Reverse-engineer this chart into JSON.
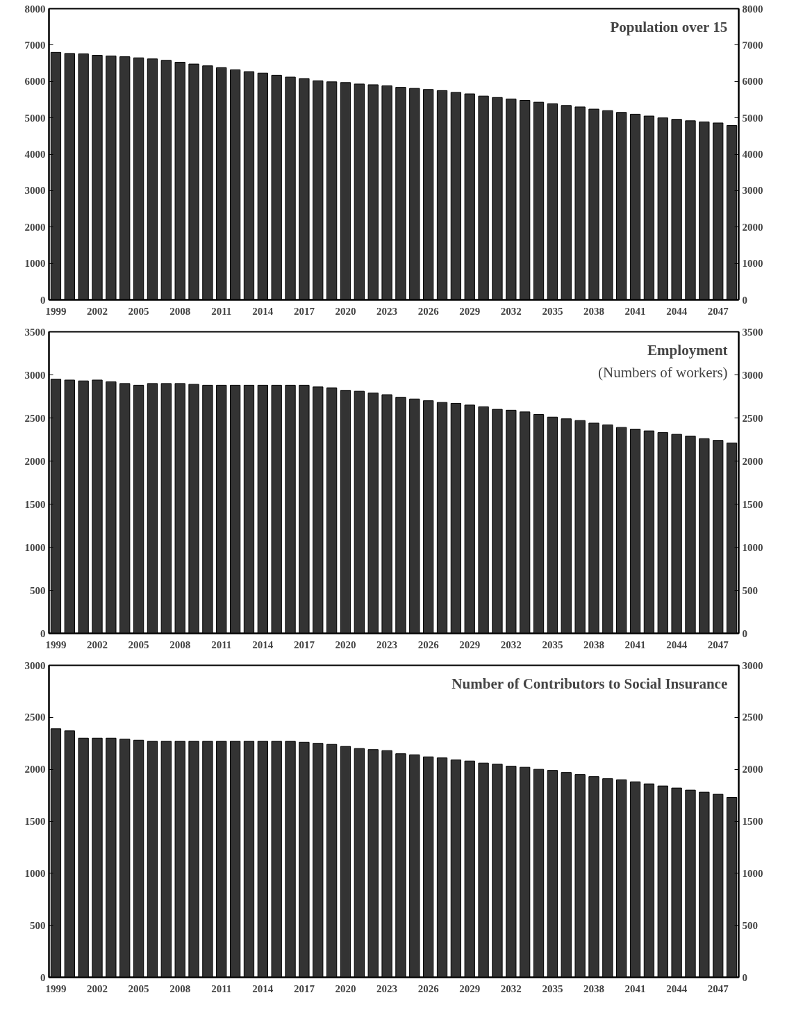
{
  "chart_data": [
    {
      "type": "bar",
      "title": "Population over 15",
      "categories": [
        "1999",
        null,
        null,
        "2002",
        null,
        null,
        "2005",
        null,
        null,
        "2008",
        null,
        null,
        "2011",
        null,
        null,
        "2014",
        null,
        null,
        "2017",
        null,
        null,
        "2020",
        null,
        null,
        "2023",
        null,
        null,
        "2026",
        null,
        null,
        "2029",
        null,
        null,
        "2032",
        null,
        null,
        "2035",
        null,
        null,
        "2038",
        null,
        null,
        "2041",
        null,
        null,
        "2044",
        null,
        null,
        "2047",
        null
      ],
      "values": [
        6800,
        6770,
        6760,
        6720,
        6700,
        6680,
        6650,
        6620,
        6580,
        6530,
        6480,
        6430,
        6380,
        6320,
        6270,
        6230,
        6170,
        6120,
        6080,
        6020,
        5990,
        5970,
        5930,
        5910,
        5880,
        5840,
        5810,
        5780,
        5750,
        5700,
        5660,
        5600,
        5560,
        5520,
        5480,
        5430,
        5390,
        5340,
        5300,
        5240,
        5200,
        5150,
        5100,
        5050,
        5000,
        4960,
        4920,
        4890,
        4860,
        4790
      ],
      "color": "#333333",
      "ylim": [
        0,
        8000
      ],
      "yticks": [
        0,
        1000,
        2000,
        3000,
        4000,
        5000,
        6000,
        7000,
        8000
      ],
      "y2lim": [
        0,
        8000
      ],
      "y2ticks": [
        0,
        1000,
        2000,
        3000,
        4000,
        5000,
        6000,
        7000,
        8000
      ],
      "grid": false
    },
    {
      "type": "bar",
      "title": "Employment",
      "subtitle": "(Numbers of workers)",
      "categories": [
        "1999",
        null,
        null,
        "2002",
        null,
        null,
        "2005",
        null,
        null,
        "2008",
        null,
        null,
        "2011",
        null,
        null,
        "2014",
        null,
        null,
        "2017",
        null,
        null,
        "2020",
        null,
        null,
        "2023",
        null,
        null,
        "2026",
        null,
        null,
        "2029",
        null,
        null,
        "2032",
        null,
        null,
        "2035",
        null,
        null,
        "2038",
        null,
        null,
        "2041",
        null,
        null,
        "2044",
        null,
        null,
        "2047",
        null
      ],
      "values": [
        2950,
        2940,
        2930,
        2940,
        2920,
        2900,
        2880,
        2900,
        2900,
        2900,
        2890,
        2880,
        2880,
        2880,
        2880,
        2880,
        2880,
        2880,
        2880,
        2860,
        2850,
        2820,
        2810,
        2790,
        2770,
        2740,
        2720,
        2700,
        2680,
        2670,
        2650,
        2630,
        2600,
        2590,
        2570,
        2540,
        2510,
        2490,
        2470,
        2440,
        2420,
        2390,
        2370,
        2350,
        2330,
        2310,
        2290,
        2260,
        2240,
        2210
      ],
      "color": "#333333",
      "ylim": [
        0,
        3500
      ],
      "yticks": [
        0,
        500,
        1000,
        1500,
        2000,
        2500,
        3000,
        3500
      ],
      "y2lim": [
        0,
        3500
      ],
      "y2ticks": [
        0,
        500,
        1000,
        1500,
        2000,
        2500,
        3000,
        3500
      ],
      "grid": false
    },
    {
      "type": "bar",
      "title": "Number of Contributors to Social Insurance",
      "categories": [
        "1999",
        null,
        null,
        "2002",
        null,
        null,
        "2005",
        null,
        null,
        "2008",
        null,
        null,
        "2011",
        null,
        null,
        "2014",
        null,
        null,
        "2017",
        null,
        null,
        "2020",
        null,
        null,
        "2023",
        null,
        null,
        "2026",
        null,
        null,
        "2029",
        null,
        null,
        "2032",
        null,
        null,
        "2035",
        null,
        null,
        "2038",
        null,
        null,
        "2041",
        null,
        null,
        "2044",
        null,
        null,
        "2047",
        null
      ],
      "values": [
        2390,
        2370,
        2300,
        2300,
        2300,
        2290,
        2280,
        2270,
        2270,
        2270,
        2270,
        2270,
        2270,
        2270,
        2270,
        2270,
        2270,
        2270,
        2260,
        2250,
        2240,
        2220,
        2200,
        2190,
        2180,
        2150,
        2140,
        2120,
        2110,
        2090,
        2080,
        2060,
        2050,
        2030,
        2020,
        2000,
        1990,
        1970,
        1950,
        1930,
        1910,
        1900,
        1880,
        1860,
        1840,
        1820,
        1800,
        1780,
        1760,
        1730
      ],
      "color": "#333333",
      "ylim": [
        0,
        3000
      ],
      "yticks": [
        0,
        500,
        1000,
        1500,
        2000,
        2500,
        3000
      ],
      "y2lim": [
        0,
        3000
      ],
      "y2ticks": [
        0,
        500,
        1000,
        1500,
        2000,
        2500,
        3000
      ],
      "grid": false
    }
  ]
}
